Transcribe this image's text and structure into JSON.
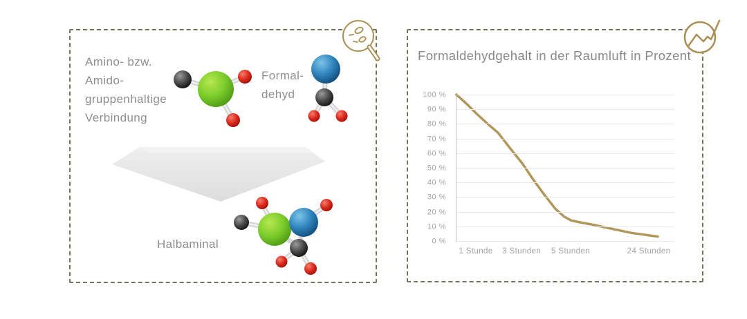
{
  "left_panel": {
    "reactant_lines": [
      "Amino- bzw.",
      "Amido-",
      "gruppenhaltige",
      "Verbindung"
    ],
    "formaldehyde_lines": [
      "Formal-",
      "dehyd"
    ],
    "product_label": "Halbaminal",
    "icon": "magnifier-molecules-icon"
  },
  "right_panel": {
    "icon": "trend-chart-icon"
  },
  "chart_data": {
    "type": "line",
    "title": "Formaldehydgehalt in der Raumluft in Prozent",
    "xlabel": "",
    "ylabel": "",
    "categories": [
      "1 Stunde",
      "3 Stunden",
      "5 Stunden",
      "24 Stunden"
    ],
    "values": [
      87,
      53,
      14,
      3
    ],
    "start_value": 100,
    "ylim": [
      0,
      100
    ],
    "y_ticks": [
      "100 %",
      "90 %",
      "80 %",
      "70 %",
      "60 %",
      "50 %",
      "40 %",
      "30 %",
      "20 %",
      "10 %",
      "0 %"
    ],
    "grid": true,
    "legend": false,
    "line_color": "#b2975c",
    "category_positions": [
      0.092,
      0.302,
      0.527,
      0.886
    ],
    "curve": [
      {
        "t": 0.0,
        "v": 100
      },
      {
        "t": 0.048,
        "v": 93.5
      },
      {
        "t": 0.092,
        "v": 87
      },
      {
        "t": 0.143,
        "v": 80
      },
      {
        "t": 0.19,
        "v": 74
      },
      {
        "t": 0.248,
        "v": 63
      },
      {
        "t": 0.302,
        "v": 53
      },
      {
        "t": 0.352,
        "v": 42
      },
      {
        "t": 0.406,
        "v": 31
      },
      {
        "t": 0.454,
        "v": 22
      },
      {
        "t": 0.495,
        "v": 16.5
      },
      {
        "t": 0.527,
        "v": 14
      },
      {
        "t": 0.575,
        "v": 12.5
      },
      {
        "t": 0.613,
        "v": 11.5
      },
      {
        "t": 0.708,
        "v": 8.5
      },
      {
        "t": 0.803,
        "v": 5.5
      },
      {
        "t": 0.924,
        "v": 3
      }
    ]
  },
  "colors": {
    "accent_gold": "#b2975c",
    "icon_gold": "#ab8f55",
    "border_dash": "#73735b",
    "text_gray": "#8e8e8e",
    "tick_gray": "#a3a3a3",
    "grid_gray": "#e9e9e9",
    "axis_gray": "#c6c6c6",
    "arrow_gray": "#e7e7e7",
    "sphere_green": "#6cc22a",
    "sphere_blue": "#2f85bd",
    "sphere_black": "#2b2b2b",
    "sphere_red": "#d42a1e",
    "stick_gray": "#d7d7d7"
  }
}
